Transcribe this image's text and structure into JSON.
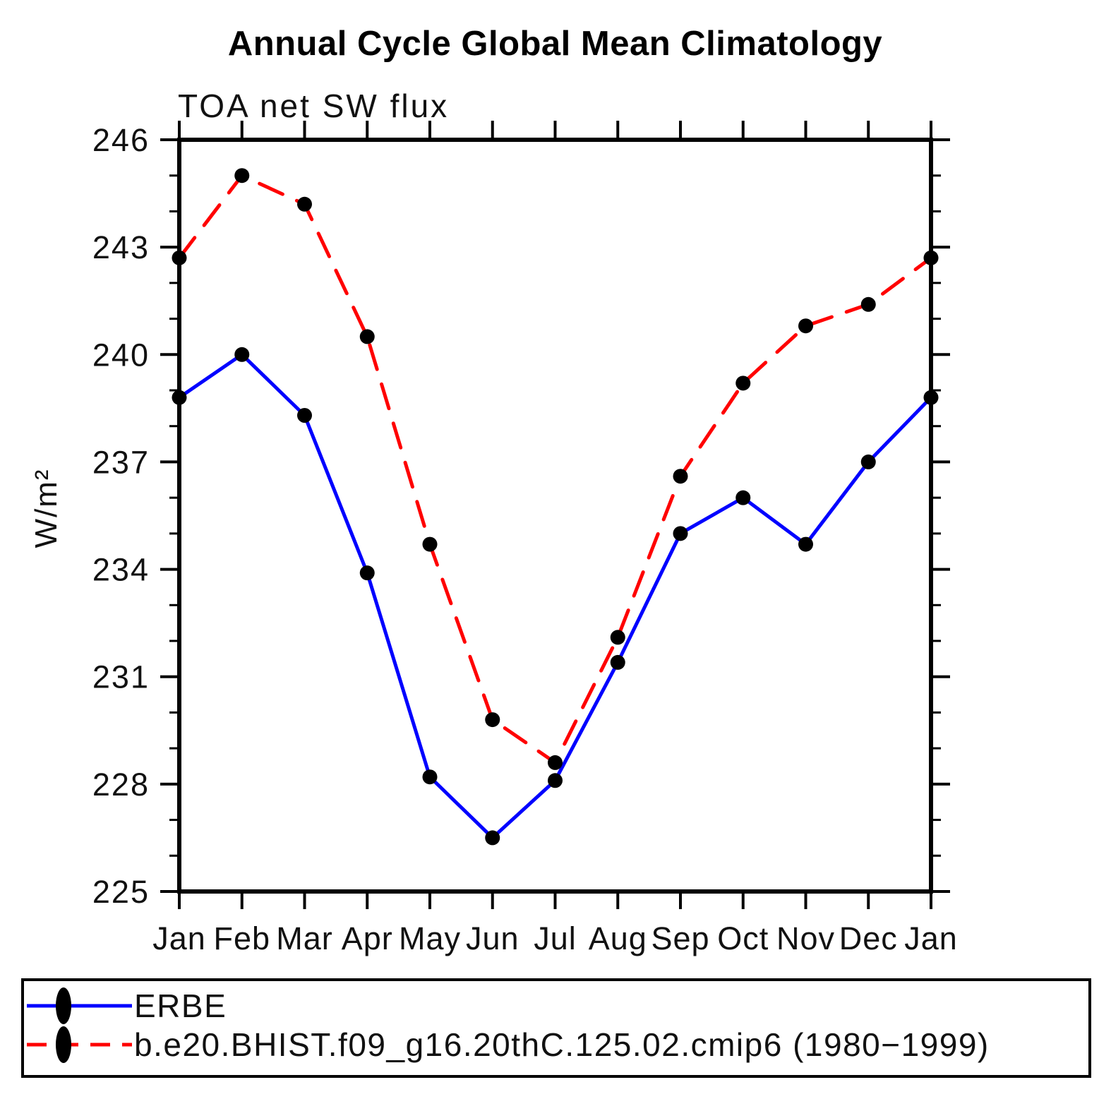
{
  "chart_data": {
    "type": "line",
    "title": "Annual Cycle Global Mean Climatology",
    "subtitle": "TOA net SW flux",
    "ylabel": "W/m²",
    "xlabel": "",
    "categories": [
      "Jan",
      "Feb",
      "Mar",
      "Apr",
      "May",
      "Jun",
      "Jul",
      "Aug",
      "Sep",
      "Oct",
      "Nov",
      "Dec",
      "Jan"
    ],
    "series": [
      {
        "name": "ERBE",
        "color": "#0000ff",
        "line_style": "solid",
        "marker": "black-circle",
        "values": [
          238.8,
          240.0,
          238.3,
          233.9,
          228.2,
          226.5,
          228.1,
          231.4,
          235.0,
          236.0,
          234.7,
          237.0,
          238.8
        ]
      },
      {
        "name": "b.e20.BHIST.f09_g16.20thC.125.02.cmip6 (1980−1999)",
        "color": "#ff0000",
        "line_style": "dashed",
        "marker": "black-circle",
        "values": [
          242.7,
          245.0,
          244.2,
          240.5,
          234.7,
          229.8,
          228.6,
          232.1,
          236.6,
          239.2,
          240.8,
          241.4,
          242.7
        ]
      }
    ],
    "ylim": [
      225,
      246
    ],
    "ytick_major_step": 3,
    "ytick_minor_step": 1,
    "ytick_labels": [
      "225",
      "228",
      "231",
      "234",
      "237",
      "240",
      "243",
      "246"
    ],
    "marker_color": "#000000",
    "axis_color": "#000000",
    "grid": "off",
    "legend_position": "bottom-box"
  }
}
